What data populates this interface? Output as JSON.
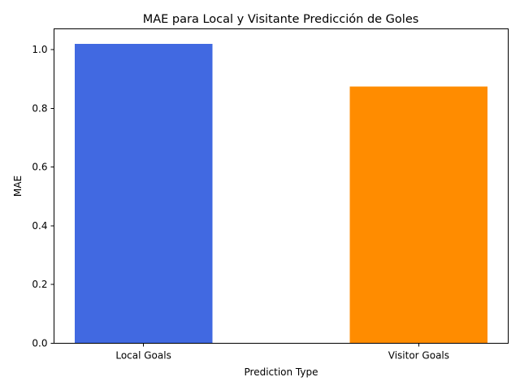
{
  "chart_data": {
    "type": "bar",
    "title": "MAE para Local y Visitante Predicción de Goles",
    "xlabel": "Prediction Type",
    "ylabel": "MAE",
    "categories": [
      "Local Goals",
      "Visitor Goals"
    ],
    "values": [
      1.02,
      0.875
    ],
    "colors": [
      "#4169e1",
      "#ff8c00"
    ],
    "ylim": [
      0,
      1.071
    ],
    "yticks": [
      0.0,
      0.2,
      0.4,
      0.6,
      0.8,
      1.0
    ],
    "ytick_labels": [
      "0.0",
      "0.2",
      "0.4",
      "0.6",
      "0.8",
      "1.0"
    ],
    "grid": false,
    "legend": "none"
  }
}
